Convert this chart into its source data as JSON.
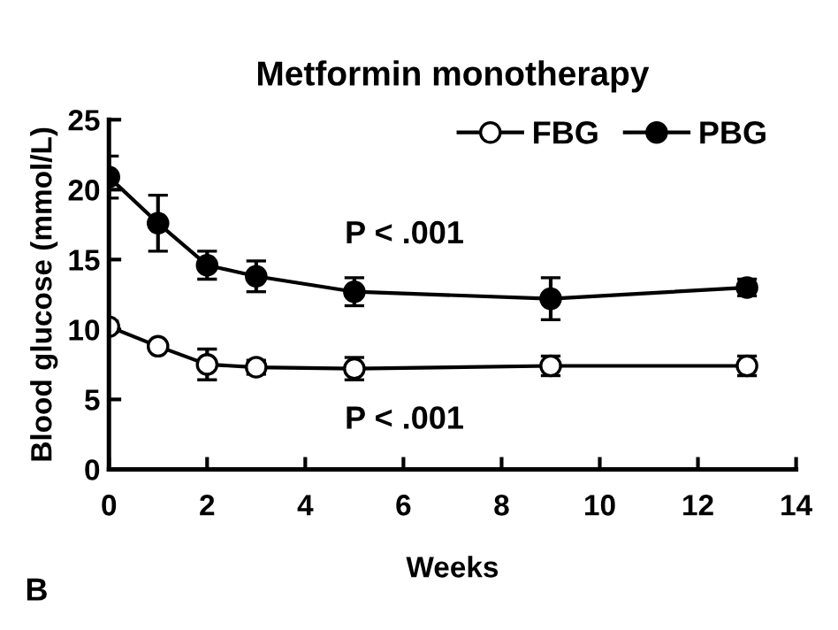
{
  "chart_data": {
    "type": "line",
    "title": "Metformin monotherapy",
    "xlabel": "Weeks",
    "ylabel": "Blood glucose (mmol/L)",
    "x": [
      0,
      1,
      2,
      3,
      5,
      9,
      13
    ],
    "series": [
      {
        "name": "FBG",
        "color": "#ffffff",
        "values": [
          10.2,
          8.8,
          7.5,
          7.3,
          7.2,
          7.4,
          7.4
        ],
        "errors": [
          0.4,
          0.3,
          1.1,
          0.5,
          0.8,
          0.7,
          0.7
        ]
      },
      {
        "name": "PBG",
        "color": "#000000",
        "values": [
          20.9,
          17.6,
          14.6,
          13.8,
          12.7,
          12.2,
          13.0
        ],
        "errors": [
          1.5,
          2.0,
          1.0,
          1.1,
          1.0,
          1.5,
          0.6
        ]
      }
    ],
    "xlim": [
      0,
      14
    ],
    "xticks": [
      0,
      2,
      4,
      6,
      8,
      10,
      12,
      14
    ],
    "ylim": [
      0,
      25
    ],
    "yticks": [
      0,
      5,
      10,
      15,
      20,
      25
    ],
    "annotations": [
      "P < .001",
      "P < .001",
      "B"
    ],
    "legend": "top right",
    "marker": "circle",
    "line_style": "solid",
    "grid": false
  }
}
